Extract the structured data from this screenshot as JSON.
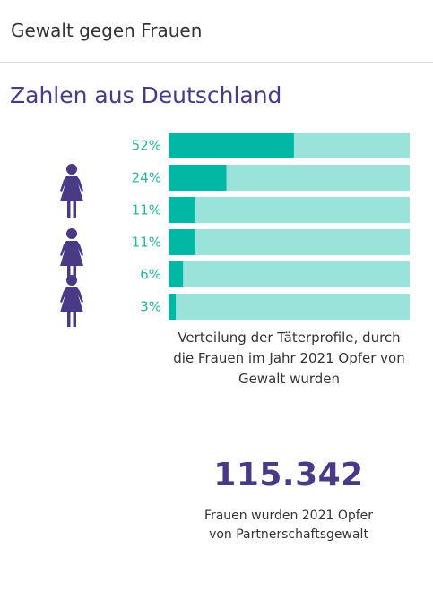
{
  "header": {
    "title": "Gewalt gegen Frauen"
  },
  "section": {
    "title": "Zahlen aus Deutschland"
  },
  "colors": {
    "accent": "#4a3a86",
    "bar_fill": "#00b8a3",
    "bar_track": "#99e3db",
    "label": "#2bb3a3"
  },
  "icons": [
    "woman-icon",
    "woman-icon",
    "woman-icon"
  ],
  "chart_data": {
    "type": "bar",
    "orientation": "horizontal",
    "stacked_to": 100,
    "values": [
      52,
      24,
      11,
      11,
      6,
      3
    ],
    "labels": [
      "52%",
      "24%",
      "11%",
      "11%",
      "6%",
      "3%"
    ],
    "xlim": [
      0,
      100
    ],
    "caption": "Verteilung der Täterprofile, durch die Frauen im Jahr 2021 Opfer von Gewalt wurden"
  },
  "stat": {
    "value": "115.342",
    "caption_line1": "Frauen wurden 2021 Opfer",
    "caption_line2": "von Partnerschaftsgewalt"
  }
}
